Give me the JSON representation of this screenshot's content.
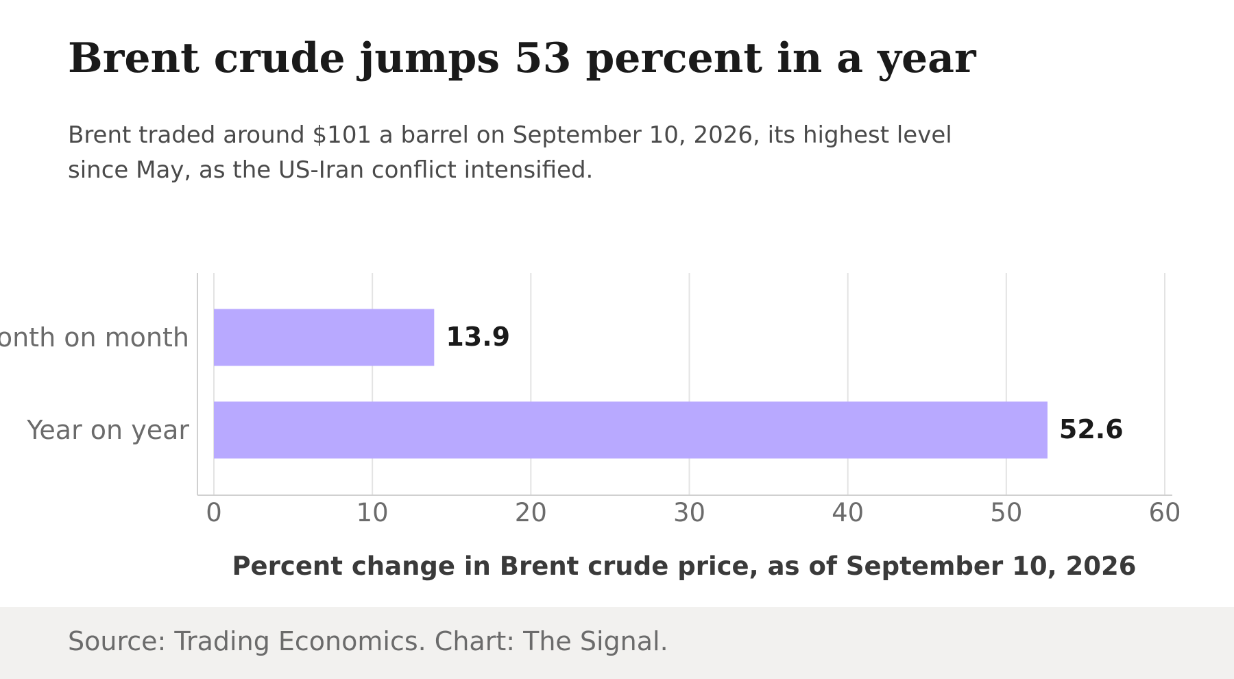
{
  "title": "Brent crude jumps 53 percent in a year",
  "subtitle": "Brent traded around $101 a barrel on September 10, 2026, its highest level since May, as the US-Iran conflict intensified.",
  "source": "Source: Trading Economics. Chart: The Signal.",
  "colors": {
    "bar": "#b8a9ff",
    "grid": "#e3e3e3",
    "axis": "#d0d0d0",
    "footer_bg": "#f2f1ef"
  },
  "chart_data": {
    "type": "bar",
    "orientation": "horizontal",
    "categories": [
      "Month on month",
      "Year on year"
    ],
    "values": [
      13.9,
      52.6
    ],
    "value_labels": [
      "13.9",
      "52.6"
    ],
    "xlabel": "Percent change in Brent crude price, as of September 10, 2026",
    "ylabel": "",
    "xlim": [
      0,
      60
    ],
    "xticks": [
      0,
      10,
      20,
      30,
      40,
      50,
      60
    ],
    "xtick_labels": [
      "0",
      "10",
      "20",
      "30",
      "40",
      "50",
      "60"
    ],
    "grid": true
  }
}
